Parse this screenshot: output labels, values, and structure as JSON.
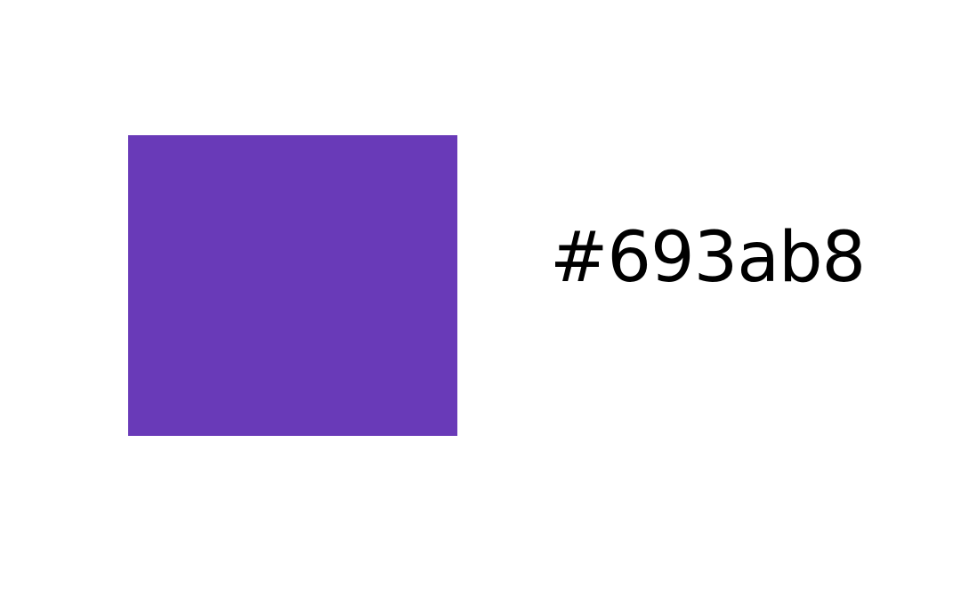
{
  "swatch": {
    "color": "#693ab8"
  },
  "label": {
    "text": "#693ab8",
    "color": "#000000"
  },
  "page": {
    "background": "#ffffff"
  }
}
